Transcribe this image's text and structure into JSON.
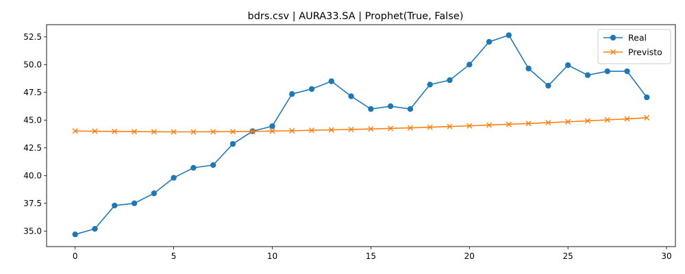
{
  "chart_data": {
    "type": "line",
    "title": "bdrs.csv | AURA33.SA | Prophet(True, False)",
    "xlabel": "",
    "ylabel": "",
    "xlim": [
      -1.45,
      30.45
    ],
    "ylim": [
      33.6,
      53.6
    ],
    "xticks": [
      0,
      5,
      10,
      15,
      20,
      25,
      30
    ],
    "xtick_labels": [
      "0",
      "5",
      "10",
      "15",
      "20",
      "25",
      "30"
    ],
    "yticks": [
      35.0,
      37.5,
      40.0,
      42.5,
      45.0,
      47.5,
      50.0,
      52.5
    ],
    "ytick_labels": [
      "35.0",
      "37.5",
      "40.0",
      "42.5",
      "45.0",
      "47.5",
      "50.0",
      "52.5"
    ],
    "grid": false,
    "legend_position": "upper right",
    "x": [
      0,
      1,
      2,
      3,
      4,
      5,
      6,
      7,
      8,
      9,
      10,
      11,
      12,
      13,
      14,
      15,
      16,
      17,
      18,
      19,
      20,
      21,
      22,
      23,
      24,
      25,
      26,
      27,
      28,
      29
    ],
    "series": [
      {
        "name": "Real",
        "color": "#1f77b4",
        "marker": "circle",
        "values": [
          34.7,
          35.2,
          37.3,
          37.5,
          38.4,
          39.8,
          40.7,
          40.95,
          42.85,
          44.0,
          44.45,
          47.35,
          47.8,
          48.5,
          47.15,
          46.0,
          46.25,
          46.0,
          48.2,
          48.6,
          50.0,
          52.05,
          52.65,
          49.65,
          48.1,
          49.95,
          49.05,
          49.4,
          49.4,
          47.05
        ]
      },
      {
        "name": "Previsto",
        "color": "#ff7f0e",
        "marker": "x",
        "values": [
          44.02,
          44.0,
          43.98,
          43.96,
          43.95,
          43.94,
          43.94,
          43.95,
          43.96,
          43.98,
          44.01,
          44.04,
          44.08,
          44.12,
          44.16,
          44.2,
          44.25,
          44.3,
          44.36,
          44.42,
          44.48,
          44.55,
          44.62,
          44.69,
          44.77,
          44.85,
          44.93,
          45.02,
          45.11,
          45.21
        ]
      }
    ]
  }
}
